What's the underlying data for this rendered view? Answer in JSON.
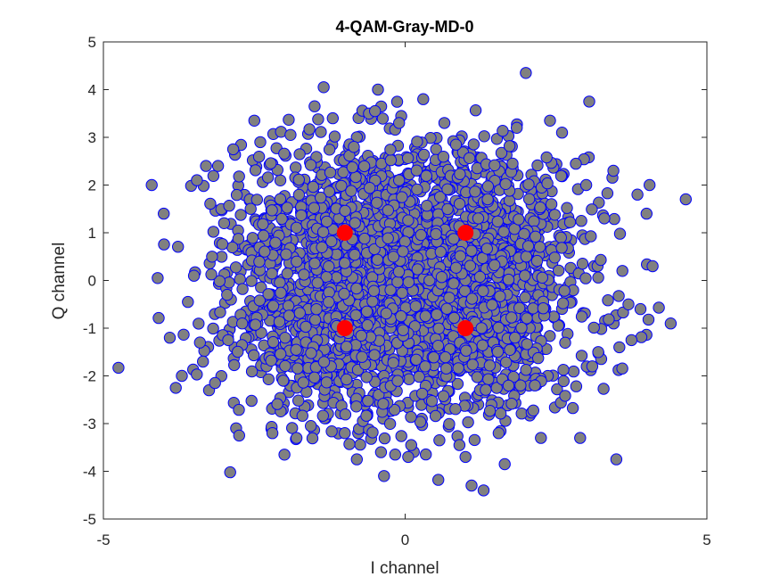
{
  "chart_data": {
    "type": "scatter",
    "title": "4-QAM-Gray-MD-0",
    "xlabel": "I channel",
    "ylabel": "Q channel",
    "xlim": [
      -5,
      5
    ],
    "ylim": [
      -5,
      5
    ],
    "xticks": [
      -5,
      0,
      5
    ],
    "yticks": [
      5,
      4,
      3,
      2,
      1,
      0,
      -1,
      -2,
      -3,
      -4,
      -5
    ],
    "grid": false,
    "legend": "none",
    "colors": {
      "received_fill": "#808080",
      "received_edge": "#0000ff",
      "reference_fill": "#ff0000",
      "axes": "#262626"
    },
    "series": [
      {
        "role": "received-symbols",
        "points": [
          [
            -4.75,
            -1.83
          ],
          [
            -4.2,
            2.0
          ],
          [
            -4.1,
            0.05
          ],
          [
            -4.0,
            1.4
          ],
          [
            -3.9,
            -1.2
          ],
          [
            -3.8,
            -2.25
          ],
          [
            -3.7,
            -2.0
          ],
          [
            -3.6,
            -0.45
          ],
          [
            -3.5,
            0.1
          ],
          [
            -3.45,
            2.1
          ],
          [
            -3.4,
            -1.3
          ],
          [
            -3.35,
            -1.7
          ],
          [
            -3.3,
            2.4
          ],
          [
            -3.25,
            -2.3
          ],
          [
            -3.2,
            0.5
          ],
          [
            -3.15,
            -2.15
          ],
          [
            -3.1,
            2.4
          ],
          [
            -3.0,
            1.2
          ],
          [
            -2.95,
            -0.3
          ],
          [
            -2.9,
            -4.02
          ],
          [
            -2.85,
            2.75
          ],
          [
            -2.8,
            -3.1
          ],
          [
            -2.75,
            -3.25
          ],
          [
            -2.7,
            -0.9
          ],
          [
            -2.5,
            3.35
          ],
          [
            -2.4,
            2.9
          ],
          [
            -2.2,
            -3.2
          ],
          [
            -2.0,
            -3.65
          ],
          [
            -1.9,
            3.05
          ],
          [
            -1.8,
            -3.3
          ],
          [
            -1.5,
            3.65
          ],
          [
            -1.35,
            4.05
          ],
          [
            -1.2,
            3.4
          ],
          [
            -1.0,
            -3.2
          ],
          [
            -0.85,
            2.8
          ],
          [
            -0.8,
            -3.75
          ],
          [
            -0.6,
            3.5
          ],
          [
            -0.5,
            3.55
          ],
          [
            -0.45,
            4.0
          ],
          [
            -0.4,
            -3.6
          ],
          [
            -0.35,
            -4.1
          ],
          [
            -0.1,
            3.3
          ],
          [
            0.05,
            -3.7
          ],
          [
            0.3,
            3.8
          ],
          [
            0.1,
            -3.45
          ],
          [
            0.55,
            -4.18
          ],
          [
            0.65,
            3.3
          ],
          [
            0.9,
            -3.45
          ],
          [
            1.0,
            -3.7
          ],
          [
            1.1,
            -4.3
          ],
          [
            1.3,
            -4.4
          ],
          [
            1.55,
            -3.2
          ],
          [
            1.65,
            -3.85
          ],
          [
            1.85,
            3.2
          ],
          [
            2.0,
            4.35
          ],
          [
            2.25,
            -3.3
          ],
          [
            2.4,
            3.35
          ],
          [
            2.6,
            3.1
          ],
          [
            2.9,
            -3.3
          ],
          [
            3.05,
            3.75
          ],
          [
            3.0,
            2.0
          ],
          [
            3.1,
            -1.8
          ],
          [
            3.2,
            -1.5
          ],
          [
            3.3,
            1.3
          ],
          [
            3.45,
            2.3
          ],
          [
            3.5,
            -3.75
          ],
          [
            3.55,
            -1.4
          ],
          [
            3.6,
            0.2
          ],
          [
            3.7,
            -0.5
          ],
          [
            3.75,
            -1.25
          ],
          [
            3.85,
            1.8
          ],
          [
            3.9,
            -0.6
          ],
          [
            4.0,
            1.4
          ],
          [
            4.05,
            2.0
          ],
          [
            4.1,
            0.3
          ],
          [
            4.4,
            -0.9
          ],
          [
            4.65,
            1.7
          ]
        ]
      },
      {
        "role": "reference-constellation",
        "points": [
          [
            -1,
            1
          ],
          [
            1,
            1
          ],
          [
            -1,
            -1
          ],
          [
            1,
            -1
          ]
        ]
      }
    ]
  }
}
